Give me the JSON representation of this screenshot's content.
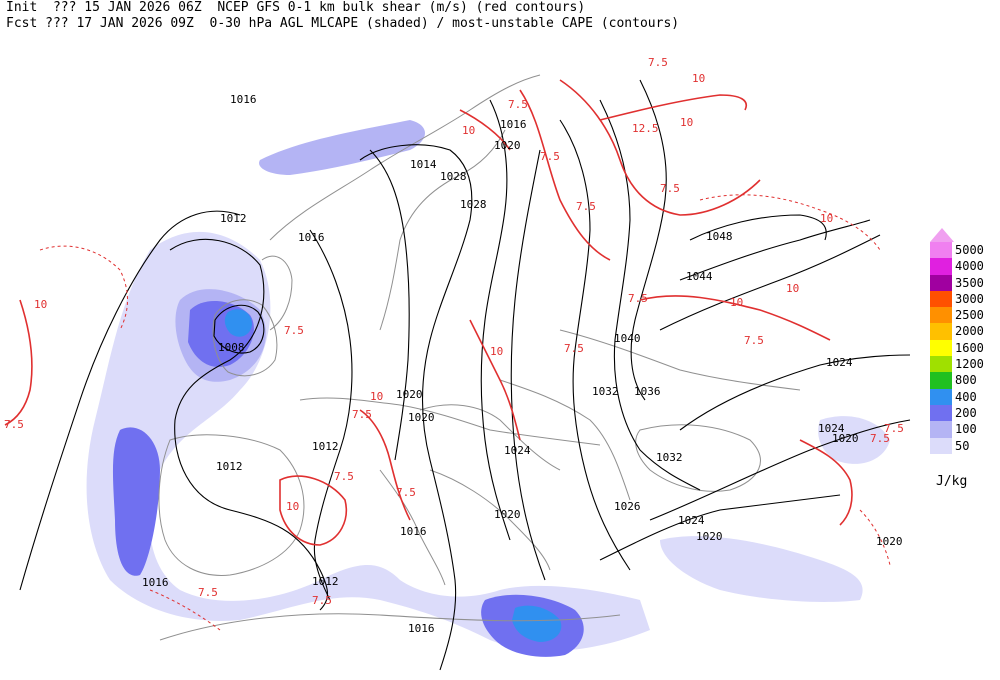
{
  "header": {
    "line1": "Init  ??? 15 JAN 2026 06Z  NCEP GFS 0-1 km bulk shear (m/s) (red contours)",
    "line2": "Fcst ??? 17 JAN 2026 09Z  0-30 hPa AGL MLCAPE (shaded) / most-unstable CAPE (contours)"
  },
  "legend": {
    "units": "J/kg",
    "entries": [
      {
        "label": "5000",
        "color": "#f080f0"
      },
      {
        "label": "4000",
        "color": "#e020e0"
      },
      {
        "label": "3500",
        "color": "#a000a0"
      },
      {
        "label": "3000",
        "color": "#ff5000"
      },
      {
        "label": "2500",
        "color": "#ff9000"
      },
      {
        "label": "2000",
        "color": "#ffc000"
      },
      {
        "label": "1600",
        "color": "#ffff00"
      },
      {
        "label": "1200",
        "color": "#a0e000"
      },
      {
        "label": "800",
        "color": "#20c020"
      },
      {
        "label": "400",
        "color": "#3090f0"
      },
      {
        "label": "200",
        "color": "#7070f0"
      },
      {
        "label": "100",
        "color": "#b4b4f4"
      },
      {
        "label": "50",
        "color": "#dcdcfa"
      }
    ]
  },
  "isobar_labels": [
    "1016",
    "1012",
    "1008",
    "1016",
    "1014",
    "1028",
    "1028",
    "1016",
    "1020",
    "1048",
    "1044",
    "1040",
    "1024",
    "1032",
    "1036",
    "1020",
    "1020",
    "1012",
    "1012",
    "1024",
    "1032",
    "1026",
    "1024",
    "1020",
    "1016",
    "1016",
    "1012",
    "1016",
    "1020",
    "1020",
    "1024",
    "1020"
  ],
  "shear_labels": [
    "10",
    "7.5",
    "7.5",
    "10",
    "7.5",
    "7.5",
    "10",
    "12.5",
    "7.5",
    "10",
    "10",
    "7.5",
    "10",
    "7.5",
    "7.5",
    "10",
    "7.5",
    "10",
    "10",
    "7.5",
    "7.5",
    "7.5",
    "7.5",
    "10",
    "7.5",
    "7.5",
    "7.5",
    "7.5"
  ]
}
